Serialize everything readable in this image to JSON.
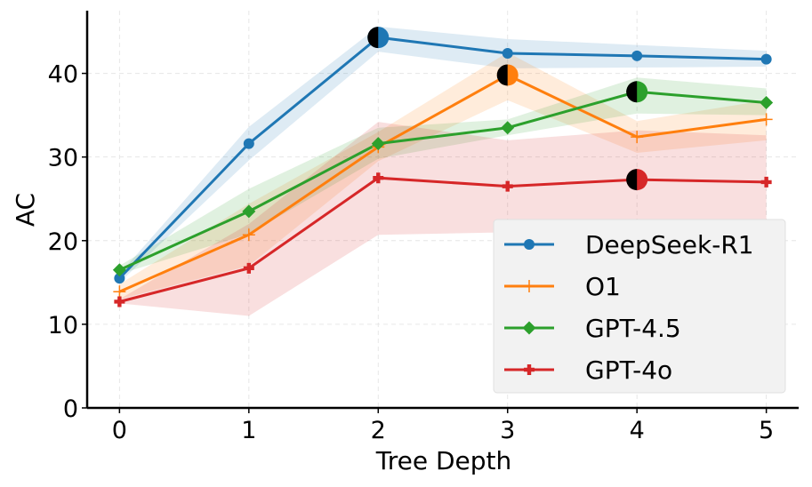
{
  "chart_data": {
    "type": "line",
    "title": "",
    "xlabel": "Tree Depth",
    "ylabel": "AC",
    "x": [
      0,
      1,
      2,
      3,
      4,
      5
    ],
    "xticks": [
      "0",
      "1",
      "2",
      "3",
      "4",
      "5"
    ],
    "yticks": [
      "0",
      "10",
      "20",
      "30",
      "40"
    ],
    "xlim": [
      -0.25,
      5.25
    ],
    "ylim": [
      0,
      47.5
    ],
    "grid": true,
    "legend_position": "lower-right",
    "series": [
      {
        "name": "DeepSeek-R1",
        "color": "#1f77b4",
        "marker": "circle",
        "values": [
          15.5,
          31.6,
          44.3,
          42.4,
          42.1,
          41.7
        ],
        "lower": [
          15.0,
          29.6,
          42.6,
          40.6,
          40.7,
          40.8
        ],
        "upper": [
          16.0,
          33.6,
          45.6,
          44.1,
          43.4,
          42.7
        ],
        "highlight_index": 2
      },
      {
        "name": "O1",
        "color": "#ff7f0e",
        "marker": "plus",
        "values": [
          13.9,
          20.7,
          31.2,
          39.8,
          32.4,
          34.5
        ],
        "lower": [
          13.0,
          17.0,
          29.5,
          36.8,
          30.5,
          32.0
        ],
        "upper": [
          14.8,
          24.4,
          33.0,
          42.5,
          34.3,
          36.8
        ],
        "highlight_index": 3
      },
      {
        "name": "GPT-4.5",
        "color": "#2ca02c",
        "marker": "diamond",
        "values": [
          16.5,
          23.5,
          31.6,
          33.5,
          37.8,
          36.5
        ],
        "lower": [
          16.0,
          20.8,
          29.8,
          32.6,
          35.2,
          35.0
        ],
        "upper": [
          17.0,
          26.2,
          33.5,
          34.5,
          39.5,
          38.2
        ],
        "highlight_index": 4
      },
      {
        "name": "GPT-4o",
        "color": "#d62728",
        "marker": "cross",
        "values": [
          12.7,
          16.7,
          27.5,
          26.5,
          27.3,
          27.0
        ],
        "lower": [
          12.5,
          11.0,
          20.7,
          21.0,
          21.5,
          21.0
        ],
        "upper": [
          13.0,
          22.0,
          34.2,
          32.0,
          33.2,
          32.6
        ],
        "highlight_index": 4
      }
    ]
  }
}
